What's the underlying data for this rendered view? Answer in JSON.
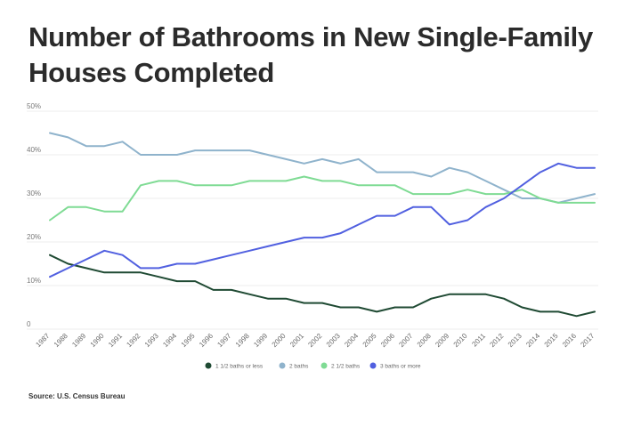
{
  "title": "Number of Bathrooms in New Single-Family Houses Completed",
  "source": "Source: U.S. Census Bureau",
  "chart_data": {
    "type": "line",
    "title": "",
    "xlabel": "",
    "ylabel": "",
    "ylim": [
      0,
      50
    ],
    "yticks": [
      {
        "value": 0,
        "label": "0"
      },
      {
        "value": 10,
        "label": "10%"
      },
      {
        "value": 20,
        "label": "20%"
      },
      {
        "value": 30,
        "label": "30%"
      },
      {
        "value": 40,
        "label": "40%"
      },
      {
        "value": 50,
        "label": "50%"
      }
    ],
    "grid": true,
    "legend_position": "bottom",
    "x": [
      "1987",
      "1988",
      "1989",
      "1990",
      "1991",
      "1992",
      "1993",
      "1994",
      "1995",
      "1996",
      "1997",
      "1998",
      "1999",
      "2000",
      "2001",
      "2002",
      "2003",
      "2004",
      "2005",
      "2006",
      "2007",
      "2008",
      "2009",
      "2010",
      "2011",
      "2012",
      "2013",
      "2014",
      "2015",
      "2016",
      "2017"
    ],
    "series": [
      {
        "name": "1 1/2 baths or less",
        "color": "#1f4a33",
        "values": [
          17,
          15,
          14,
          13,
          13,
          13,
          12,
          11,
          11,
          9,
          9,
          8,
          7,
          7,
          6,
          6,
          5,
          5,
          4,
          5,
          5,
          7,
          8,
          8,
          8,
          7,
          5,
          4,
          4,
          3,
          4
        ]
      },
      {
        "name": "2 baths",
        "color": "#8fb3cc",
        "values": [
          45,
          44,
          42,
          42,
          43,
          40,
          40,
          40,
          41,
          41,
          41,
          41,
          40,
          39,
          38,
          39,
          38,
          39,
          36,
          36,
          36,
          35,
          37,
          36,
          34,
          32,
          30,
          30,
          29,
          30,
          31
        ]
      },
      {
        "name": "2 1/2 baths",
        "color": "#7fdb94",
        "values": [
          25,
          28,
          28,
          27,
          27,
          33,
          34,
          34,
          33,
          33,
          33,
          34,
          34,
          34,
          35,
          34,
          34,
          33,
          33,
          33,
          31,
          31,
          31,
          32,
          31,
          31,
          32,
          30,
          29,
          29,
          29
        ]
      },
      {
        "name": "3 baths or more",
        "color": "#5160e0",
        "values": [
          12,
          14,
          16,
          18,
          17,
          14,
          14,
          15,
          15,
          16,
          17,
          18,
          19,
          20,
          21,
          21,
          22,
          24,
          26,
          26,
          28,
          28,
          24,
          25,
          28,
          30,
          33,
          36,
          38,
          37,
          37
        ]
      }
    ]
  }
}
